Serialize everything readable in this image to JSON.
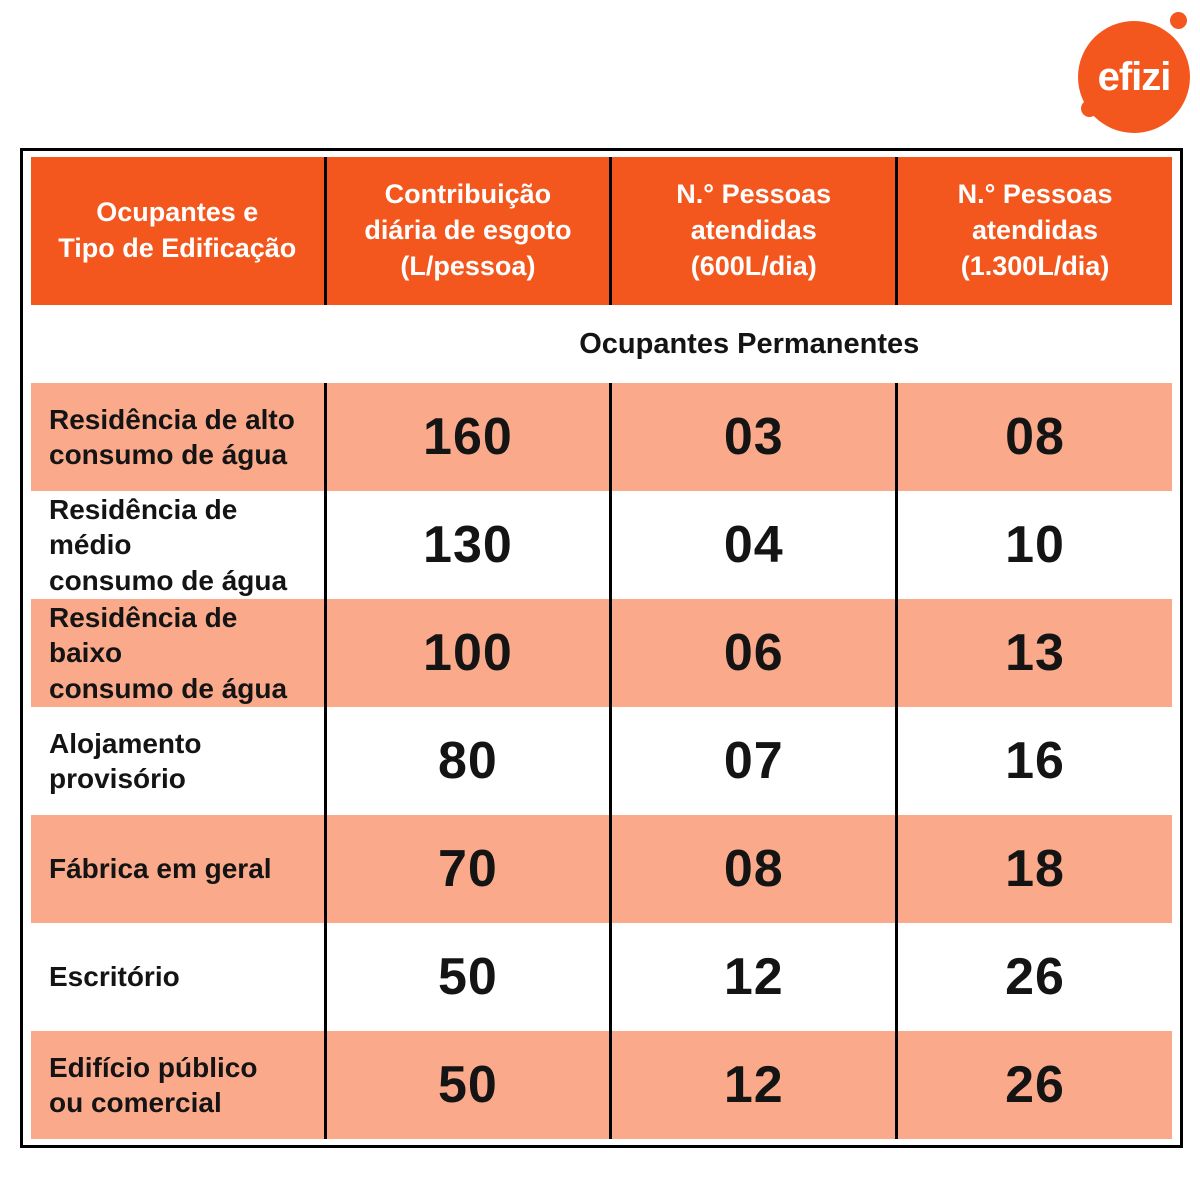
{
  "logo": {
    "text": "efizi",
    "brand_color": "#F4571D"
  },
  "colors": {
    "header_orange": "#F4571D",
    "row_salmon": "#FAA98A",
    "row_white": "#FFFFFF",
    "border_black": "#000000",
    "header_text": "#FFFFFF",
    "body_text": "#141414"
  },
  "chart_data": {
    "type": "table",
    "columns": [
      "Ocupantes e\nTipo de Edificação",
      "Contribuição\ndiária de esgoto\n(L/pessoa)",
      "N.° Pessoas\natendidas\n(600L/dia)",
      "N.° Pessoas\natendidas\n(1.300L/dia)"
    ],
    "section_title": "Ocupantes Permanentes",
    "rows": [
      {
        "label": "Residência de alto\nconsumo de água",
        "values": [
          "160",
          "03",
          "08"
        ]
      },
      {
        "label": "Residência de médio\nconsumo de água",
        "values": [
          "130",
          "04",
          "10"
        ]
      },
      {
        "label": "Residência de baixo\nconsumo de água",
        "values": [
          "100",
          "06",
          "13"
        ]
      },
      {
        "label": "Alojamento\nprovisório",
        "values": [
          "80",
          "07",
          "16"
        ]
      },
      {
        "label": "Fábrica em geral",
        "values": [
          "70",
          "08",
          "18"
        ]
      },
      {
        "label": "Escritório",
        "values": [
          "50",
          "12",
          "26"
        ]
      },
      {
        "label": "Edifício público\nou comercial",
        "values": [
          "50",
          "12",
          "26"
        ]
      }
    ]
  }
}
